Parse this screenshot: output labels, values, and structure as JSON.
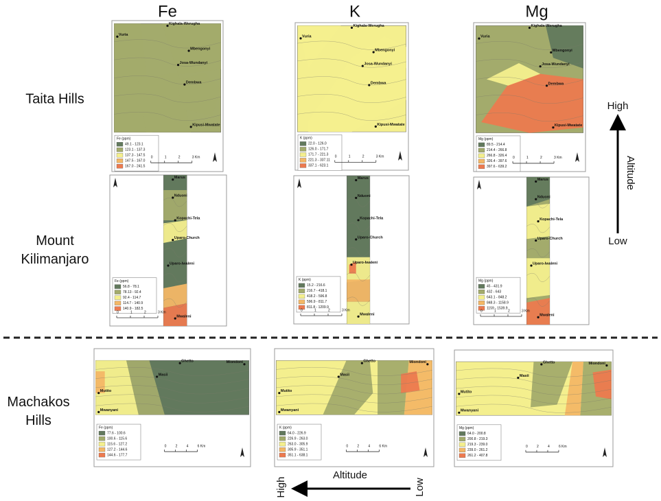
{
  "columns": [
    "Fe",
    "K",
    "Mg"
  ],
  "regions": [
    {
      "name_lines": [
        "Taita Hills"
      ],
      "places": [
        "Kighala-Werugha",
        "Vuria",
        "Mbengonyi",
        "Josa-Wundanyi",
        "Dembwa",
        "Kipusi-Mwatate"
      ],
      "scale": [
        "0",
        "1",
        "2",
        "3 Km"
      ],
      "maps": [
        {
          "legend_title": "Fe (ppm)",
          "legend_items": [
            "49.1 - 123.1",
            "123.1 - 137.3",
            "137.3 - 147.5",
            "147.5 - 167.0",
            "167.0 - 241.5"
          ]
        },
        {
          "legend_title": "K (ppm)",
          "legend_items": [
            "22.0 - 126.0",
            "126.0 - 171.7",
            "171.7 - 221.3",
            "221.3 - 337.11",
            "337.1 - 623.1"
          ]
        },
        {
          "legend_title": "Mg (ppm)",
          "legend_items": [
            "89.5 - 214.4",
            "214.4 - 266.8",
            "266.8 - 326.4",
            "326.4 - 397.6",
            "397.6 - 639.2"
          ]
        }
      ]
    },
    {
      "name_lines": [
        "Mount",
        "Kilimanjaro"
      ],
      "places": [
        "Marus",
        "Nduoni",
        "Kopachi-Tela",
        "Uparo-Church",
        "Uparo-Iwaleni",
        "Mwaleni"
      ],
      "scale": [
        "0",
        "1",
        "2",
        "3 Km"
      ],
      "maps": [
        {
          "legend_title": "Fe (ppm)",
          "legend_items": [
            "56.8 - 78.1",
            "78.13 - 92.4",
            "92.4 - 114.7",
            "114.7 - 140.9",
            "140.9 - 182.5"
          ]
        },
        {
          "legend_title": "K (ppm)",
          "legend_items": [
            "15.2 - 216.6",
            "216.7 - 418.1",
            "418.2 - 596.8",
            "596.9 - 811.7",
            "811.8 - 1209.9"
          ]
        },
        {
          "legend_title": "Mg (ppm)",
          "legend_items": [
            "45 - 431.9",
            "432 - 643",
            "643.1 - 848.2",
            "848.3 - 1158.9",
            "1159 - 1539.9"
          ]
        }
      ]
    },
    {
      "name_lines": [
        "Machakos",
        "Hills"
      ],
      "places": [
        "Ghetto",
        "Miondoni",
        "Masii",
        "Mutito",
        "Mwanyani"
      ],
      "scale": [
        "0",
        "2",
        "4",
        "6 Km"
      ],
      "maps": [
        {
          "legend_title": "Fe (ppm)",
          "legend_items": [
            "77.6 - 100.6",
            "100.6 - 115.6",
            "115.6 - 127.2",
            "127.2 - 144.6",
            "144.6 - 177.7"
          ]
        },
        {
          "legend_title": "K (ppm)",
          "legend_items": [
            "64.0 - 226.9",
            "226.9 - 263.0",
            "263.0 - 305.9",
            "305.9 - 351.1",
            "351.1 - 638.1"
          ]
        },
        {
          "legend_title": "Mg (ppm)",
          "legend_items": [
            "64.0 - 200.8",
            "200.8 - 219.3",
            "219.3 - 239.0",
            "239.0 - 261.2",
            "261.2 - 407.8"
          ]
        }
      ]
    }
  ],
  "altitude_vertical": {
    "high": "High",
    "label": "Altitude",
    "low": "Low"
  },
  "altitude_horizontal": {
    "label": "Altitude",
    "high": "High",
    "low": "Low"
  }
}
